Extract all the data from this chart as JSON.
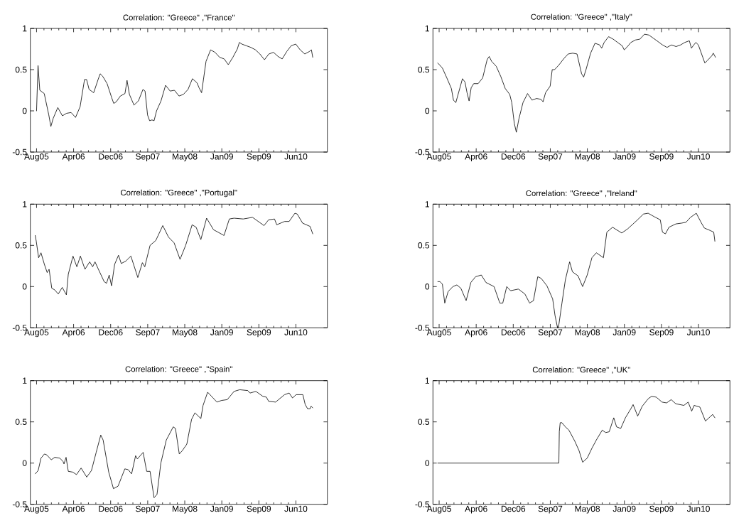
{
  "chart_data": [
    {
      "type": "line",
      "title": "Correlation: \"Greece\" ,\"France\"",
      "color": "#000000",
      "xlim": [
        "2005-06-29",
        "2011-01-01"
      ],
      "ylim": [
        -0.5,
        1
      ],
      "yticks": [
        -0.5,
        0,
        0.5,
        1
      ],
      "xticks": [
        {
          "value": "2005-08-10",
          "label": "Aug05"
        },
        {
          "value": "2006-04-18",
          "label": "Apr06"
        },
        {
          "value": "2006-12-25",
          "label": "Dec06"
        },
        {
          "value": "2007-09-02",
          "label": "Sep07"
        },
        {
          "value": "2008-05-10",
          "label": "May08"
        },
        {
          "value": "2009-01-16",
          "label": "Jan09"
        },
        {
          "value": "2009-09-24",
          "label": "Sep09"
        },
        {
          "value": "2010-06-02",
          "label": "Jun10"
        }
      ],
      "x": [
        "2005-08-10",
        "2005-08-20",
        "2005-09",
        "2005-10",
        "2005-11",
        "2005-11-15",
        "2005-12",
        "2006-01",
        "2006-02",
        "2006-03",
        "2006-04",
        "2006-05",
        "2006-06",
        "2006-07",
        "2006-07-15",
        "2006-08",
        "2006-09",
        "2006-10",
        "2006-10-15",
        "2006-11",
        "2006-12",
        "2007-01",
        "2007-01-15",
        "2007-02",
        "2007-03",
        "2007-04",
        "2007-04-15",
        "2007-05",
        "2007-06",
        "2007-07",
        "2007-08",
        "2007-08-15",
        "2007-09",
        "2007-09-15",
        "2007-10",
        "2007-10-15",
        "2007-11",
        "2007-12",
        "2008-01",
        "2008-02",
        "2008-03",
        "2008-04",
        "2008-05",
        "2008-06",
        "2008-07",
        "2008-08",
        "2008-08-15",
        "2008-09",
        "2008-10",
        "2008-11",
        "2008-12",
        "2009-01",
        "2009-02",
        "2009-03",
        "2009-04",
        "2009-05",
        "2009-05-15",
        "2009-06",
        "2009-07",
        "2009-08",
        "2009-09",
        "2009-10",
        "2009-11",
        "2009-12",
        "2010-01",
        "2010-02",
        "2010-03",
        "2010-04",
        "2010-05",
        "2010-06",
        "2010-07",
        "2010-08",
        "2010-09",
        "2010-09-15",
        "2010-09-24"
      ],
      "values": [
        0,
        0.55,
        0.25,
        0.21,
        -0.05,
        -0.19,
        -0.09,
        0.04,
        -0.06,
        -0.03,
        -0.02,
        -0.08,
        0.05,
        0.38,
        0.38,
        0.26,
        0.22,
        0.38,
        0.45,
        0.42,
        0.33,
        0.16,
        0.09,
        0.11,
        0.18,
        0.21,
        0.37,
        0.2,
        0.07,
        0.12,
        0.26,
        0.24,
        -0.05,
        -0.12,
        -0.11,
        -0.12,
        0.0,
        0.12,
        0.31,
        0.24,
        0.25,
        0.18,
        0.2,
        0.26,
        0.39,
        0.34,
        0.28,
        0.22,
        0.6,
        0.74,
        0.71,
        0.65,
        0.63,
        0.56,
        0.65,
        0.75,
        0.83,
        0.81,
        0.79,
        0.77,
        0.74,
        0.69,
        0.62,
        0.69,
        0.71,
        0.66,
        0.63,
        0.72,
        0.79,
        0.81,
        0.74,
        0.69,
        0.72,
        0.74,
        0.65
      ]
    },
    {
      "type": "line",
      "title": "Correlation: \"Greece\" ,\"Italy\"",
      "color": "#000000",
      "xlim": [
        "2005-06-29",
        "2011-01-01"
      ],
      "ylim": [
        -0.5,
        1
      ],
      "yticks": [
        -0.5,
        0,
        0.5,
        1
      ],
      "xticks": [
        {
          "value": "2005-08-10",
          "label": "Aug05"
        },
        {
          "value": "2006-04-18",
          "label": "Apr06"
        },
        {
          "value": "2006-12-25",
          "label": "Dec06"
        },
        {
          "value": "2007-09-02",
          "label": "Sep07"
        },
        {
          "value": "2008-05-10",
          "label": "May08"
        },
        {
          "value": "2009-01-16",
          "label": "Jan09"
        },
        {
          "value": "2009-09-24",
          "label": "Sep09"
        },
        {
          "value": "2010-06-02",
          "label": "Jun10"
        }
      ],
      "x": [
        "2005-08",
        "2005-09",
        "2005-10",
        "2005-11",
        "2005-11-15",
        "2005-12",
        "2006-01",
        "2006-01-15",
        "2006-02",
        "2006-02-15",
        "2006-03",
        "2006-03-15",
        "2006-04",
        "2006-05",
        "2006-06",
        "2006-07",
        "2006-07-15",
        "2006-08",
        "2006-09",
        "2006-10",
        "2006-11",
        "2006-12",
        "2006-12-15",
        "2007-01",
        "2007-01-15",
        "2007-02",
        "2007-03",
        "2007-04",
        "2007-05",
        "2007-06",
        "2007-07",
        "2007-07-15",
        "2007-08",
        "2007-09",
        "2007-09-15",
        "2007-10",
        "2007-11",
        "2007-12",
        "2008-01",
        "2008-02",
        "2008-03",
        "2008-04",
        "2008-04-15",
        "2008-05",
        "2008-06",
        "2008-07",
        "2008-08",
        "2008-08-15",
        "2008-09",
        "2008-10",
        "2008-11",
        "2008-12",
        "2009-01",
        "2009-01-15",
        "2009-02",
        "2009-03",
        "2009-04",
        "2009-05",
        "2009-06",
        "2009-07",
        "2009-08",
        "2009-09",
        "2009-10",
        "2009-11",
        "2009-12",
        "2010-01",
        "2010-02",
        "2010-03",
        "2010-04",
        "2010-04-15",
        "2010-05",
        "2010-05-15",
        "2010-06",
        "2010-07",
        "2010-07-15",
        "2010-08",
        "2010-09",
        "2010-09-10",
        "2010-09-25"
      ],
      "values": [
        0.58,
        0.52,
        0.4,
        0.27,
        0.13,
        0.1,
        0.3,
        0.39,
        0.35,
        0.22,
        0.12,
        0.28,
        0.33,
        0.33,
        0.4,
        0.62,
        0.66,
        0.6,
        0.54,
        0.42,
        0.27,
        0.2,
        0.1,
        -0.15,
        -0.26,
        -0.1,
        0.1,
        0.21,
        0.13,
        0.15,
        0.14,
        0.11,
        0.22,
        0.3,
        0.5,
        0.5,
        0.56,
        0.63,
        0.69,
        0.7,
        0.69,
        0.45,
        0.41,
        0.5,
        0.7,
        0.82,
        0.8,
        0.76,
        0.83,
        0.9,
        0.87,
        0.83,
        0.79,
        0.74,
        0.77,
        0.83,
        0.86,
        0.87,
        0.93,
        0.92,
        0.88,
        0.84,
        0.8,
        0.77,
        0.8,
        0.78,
        0.8,
        0.83,
        0.85,
        0.76,
        0.8,
        0.83,
        0.8,
        0.65,
        0.58,
        0.61,
        0.67,
        0.7,
        0.65
      ]
    },
    {
      "type": "line",
      "title": "Correlation: \"Greece\" ,\"Portugal\"",
      "color": "#000000",
      "xlim": [
        "2005-06-29",
        "2011-01-01"
      ],
      "ylim": [
        -0.5,
        1
      ],
      "yticks": [
        -0.5,
        0,
        0.5,
        1
      ],
      "xticks": [
        {
          "value": "2005-08-10",
          "label": "Aug05"
        },
        {
          "value": "2006-04-18",
          "label": "Apr06"
        },
        {
          "value": "2006-12-25",
          "label": "Dec06"
        },
        {
          "value": "2007-09-02",
          "label": "Sep07"
        },
        {
          "value": "2008-05-10",
          "label": "May08"
        },
        {
          "value": "2009-01-16",
          "label": "Jan09"
        },
        {
          "value": "2009-09-24",
          "label": "Sep09"
        },
        {
          "value": "2010-06-02",
          "label": "Jun10"
        }
      ],
      "x": [
        "2005-08-01",
        "2005-08-08",
        "2005-08-24",
        "2005-09-09",
        "2005-10-02",
        "2005-10-21",
        "2005-11-03",
        "2005-11-21",
        "2005-12-11",
        "2006-01-04",
        "2006-01-31",
        "2006-02-28",
        "2006-03-13",
        "2006-04-14",
        "2006-05-10",
        "2006-06-03",
        "2006-07-04",
        "2006-08-05",
        "2006-08-25",
        "2006-09-10",
        "2006-10-03",
        "2006-11-11",
        "2006-11-27",
        "2006-12-15",
        "2006-12-31",
        "2007-01-21",
        "2007-02-16",
        "2007-03-07",
        "2007-04-07",
        "2007-05-11",
        "2007-06-27",
        "2007-07-28",
        "2007-08-13",
        "2007-09-18",
        "2007-10-27",
        "2007-12-13",
        "2008-01-21",
        "2008-02-28",
        "2008-04-08",
        "2008-05-16",
        "2008-06-29",
        "2008-07-26",
        "2008-08-27",
        "2008-10-05",
        "2008-11-21",
        "2009-01-31",
        "2009-03-08",
        "2009-04-09",
        "2009-06-10",
        "2009-08-12",
        "2009-10-29",
        "2009-11-29",
        "2010-01-08",
        "2010-01-23",
        "2010-03-17",
        "2010-04-17",
        "2010-05-26",
        "2010-06-11",
        "2010-07-17",
        "2010-09-06",
        "2010-09-24"
      ],
      "values": [
        0.62,
        0.55,
        0.35,
        0.41,
        0.27,
        0.17,
        0.21,
        -0.02,
        -0.04,
        -0.09,
        -0.01,
        -0.1,
        0.15,
        0.37,
        0.24,
        0.37,
        0.21,
        0.3,
        0.24,
        0.3,
        0.21,
        0.06,
        0.04,
        0.14,
        0.01,
        0.27,
        0.38,
        0.28,
        0.31,
        0.37,
        0.11,
        0.29,
        0.24,
        0.5,
        0.56,
        0.74,
        0.6,
        0.53,
        0.33,
        0.5,
        0.75,
        0.72,
        0.57,
        0.83,
        0.69,
        0.62,
        0.82,
        0.83,
        0.82,
        0.84,
        0.74,
        0.81,
        0.82,
        0.75,
        0.79,
        0.79,
        0.89,
        0.88,
        0.77,
        0.73,
        0.64
      ]
    },
    {
      "type": "line",
      "title": "Correlation: \"Greece\" ,\"Ireland\"",
      "color": "#000000",
      "xlim": [
        "2005-06-29",
        "2011-01-01"
      ],
      "ylim": [
        -0.5,
        1
      ],
      "yticks": [
        -0.5,
        0,
        0.5,
        1
      ],
      "xticks": [
        {
          "value": "2005-08-10",
          "label": "Aug05"
        },
        {
          "value": "2006-04-18",
          "label": "Apr06"
        },
        {
          "value": "2006-12-25",
          "label": "Dec06"
        },
        {
          "value": "2007-09-02",
          "label": "Sep07"
        },
        {
          "value": "2008-05-10",
          "label": "May08"
        },
        {
          "value": "2009-01-16",
          "label": "Jan09"
        },
        {
          "value": "2009-09-24",
          "label": "Sep09"
        },
        {
          "value": "2010-06-02",
          "label": "Jun10"
        }
      ],
      "x": [
        "2005-08-01",
        "2005-08-16",
        "2005-09-01",
        "2005-09-17",
        "2005-10-10",
        "2005-11-11",
        "2005-12-08",
        "2006-01-04",
        "2006-02-09",
        "2006-03-13",
        "2006-04-14",
        "2006-05-23",
        "2006-06-23",
        "2006-08-17",
        "2006-09-25",
        "2006-10-15",
        "2006-11-11",
        "2006-12-07",
        "2007-01-29",
        "2007-03-14",
        "2007-04-15",
        "2007-05-11",
        "2007-06-09",
        "2007-07-02",
        "2007-08-10",
        "2007-09-18",
        "2007-10-04",
        "2007-10-21",
        "2007-10-27",
        "2007-11-20",
        "2007-12-13",
        "2008-01-11",
        "2008-01-30",
        "2008-03-08",
        "2008-04-08",
        "2008-05-09",
        "2008-06-10",
        "2008-07-10",
        "2008-08-27",
        "2008-09-19",
        "2008-10-28",
        "2008-12-29",
        "2009-02-07",
        "2009-04-09",
        "2009-05-25",
        "2009-06-26",
        "2009-08-04",
        "2009-09-16",
        "2009-10-01",
        "2009-10-21",
        "2009-11-14",
        "2009-12-30",
        "2010-02-08",
        "2010-03-09",
        "2010-04-09",
        "2010-05-18",
        "2010-06-19",
        "2010-07-12",
        "2010-08-21",
        "2010-09-13",
        "2010-09-21"
      ],
      "values": [
        0.06,
        0.06,
        0.03,
        -0.2,
        -0.06,
        0.0,
        0.02,
        -0.02,
        -0.17,
        0.05,
        0.12,
        0.14,
        0.05,
        0.0,
        -0.2,
        -0.2,
        0.0,
        -0.05,
        -0.03,
        -0.09,
        -0.2,
        -0.17,
        0.12,
        0.1,
        0.01,
        -0.15,
        -0.35,
        -0.5,
        -0.5,
        -0.2,
        0.08,
        0.3,
        0.18,
        0.13,
        0.0,
        0.14,
        0.35,
        0.41,
        0.35,
        0.66,
        0.72,
        0.65,
        0.7,
        0.8,
        0.88,
        0.89,
        0.85,
        0.81,
        0.66,
        0.64,
        0.72,
        0.76,
        0.77,
        0.78,
        0.84,
        0.89,
        0.78,
        0.71,
        0.68,
        0.66,
        0.55
      ]
    },
    {
      "type": "line",
      "title": "Correlation: \"Greece\" ,\"Spain\"",
      "color": "#000000",
      "xlim": [
        "2005-06-29",
        "2011-01-01"
      ],
      "ylim": [
        -0.5,
        1
      ],
      "yticks": [
        -0.5,
        0,
        0.5,
        1
      ],
      "xticks": [
        {
          "value": "2005-08-10",
          "label": "Aug05"
        },
        {
          "value": "2006-04-18",
          "label": "Apr06"
        },
        {
          "value": "2006-12-25",
          "label": "Dec06"
        },
        {
          "value": "2007-09-02",
          "label": "Sep07"
        },
        {
          "value": "2008-05-10",
          "label": "May08"
        },
        {
          "value": "2009-01-16",
          "label": "Jan09"
        },
        {
          "value": "2009-09-24",
          "label": "Sep09"
        },
        {
          "value": "2010-06-02",
          "label": "Jun10"
        }
      ],
      "x": [
        "2005-08-01",
        "2005-08-21",
        "2005-09-09",
        "2005-10-02",
        "2005-10-18",
        "2005-11-18",
        "2005-12-11",
        "2006-01-15",
        "2006-02-05",
        "2006-02-12",
        "2006-02-26",
        "2006-03-13",
        "2006-04-14",
        "2006-05-07",
        "2006-06-08",
        "2006-07-16",
        "2006-08-17",
        "2006-09-18",
        "2006-10-19",
        "2006-11-04",
        "2006-12-12",
        "2007-01-13",
        "2007-02-13",
        "2007-03-07",
        "2007-03-31",
        "2007-04-23",
        "2007-05-16",
        "2007-06-12",
        "2007-06-24",
        "2007-08-02",
        "2007-08-26",
        "2007-09-18",
        "2007-10-15",
        "2007-11-04",
        "2007-11-30",
        "2008-01-06",
        "2008-02-22",
        "2008-03-08",
        "2008-04-03",
        "2008-04-23",
        "2008-05-24",
        "2008-06-25",
        "2008-07-18",
        "2008-08-27",
        "2008-09-11",
        "2008-10-12",
        "2008-11-13",
        "2008-12-14",
        "2009-01-14",
        "2009-02-22",
        "2009-04-09",
        "2009-05-17",
        "2009-07-11",
        "2009-07-26",
        "2009-09-04",
        "2009-10-21",
        "2009-11-14",
        "2009-11-29",
        "2010-01-15",
        "2010-03-17",
        "2010-04-17",
        "2010-05-10",
        "2010-06-03",
        "2010-07-19",
        "2010-08-04",
        "2010-08-20",
        "2010-09-06",
        "2010-09-13",
        "2010-09-24"
      ],
      "values": [
        -0.13,
        -0.09,
        0.06,
        0.11,
        0.1,
        0.04,
        0.07,
        0.06,
        0.02,
        -0.01,
        0.07,
        -0.1,
        -0.11,
        -0.14,
        -0.06,
        -0.17,
        -0.09,
        0.13,
        0.34,
        0.28,
        -0.11,
        -0.31,
        -0.28,
        -0.18,
        -0.07,
        -0.08,
        -0.13,
        0.09,
        0.05,
        0.13,
        -0.1,
        -0.1,
        -0.42,
        -0.38,
        0.0,
        0.28,
        0.44,
        0.42,
        0.11,
        0.15,
        0.23,
        0.53,
        0.61,
        0.54,
        0.7,
        0.86,
        0.8,
        0.74,
        0.76,
        0.77,
        0.87,
        0.89,
        0.88,
        0.85,
        0.87,
        0.81,
        0.8,
        0.75,
        0.74,
        0.83,
        0.85,
        0.79,
        0.83,
        0.83,
        0.71,
        0.66,
        0.66,
        0.69,
        0.67
      ]
    },
    {
      "type": "line",
      "title": "Correlation: \"Greece\" ,\"UK\"",
      "color": "#000000",
      "xlim": [
        "2005-06-29",
        "2011-01-01"
      ],
      "ylim": [
        -0.5,
        1
      ],
      "yticks": [
        -0.5,
        0,
        0.5,
        1
      ],
      "xticks": [
        {
          "value": "2005-08-10",
          "label": "Aug05"
        },
        {
          "value": "2006-04-18",
          "label": "Apr06"
        },
        {
          "value": "2006-12-25",
          "label": "Dec06"
        },
        {
          "value": "2007-09-02",
          "label": "Sep07"
        },
        {
          "value": "2008-05-10",
          "label": "May08"
        },
        {
          "value": "2009-01-16",
          "label": "Jan09"
        },
        {
          "value": "2009-09-24",
          "label": "Sep09"
        },
        {
          "value": "2010-06-02",
          "label": "Jun10"
        }
      ],
      "x": [
        "2005-08-01",
        "2007-10-30",
        "2007-11-02",
        "2007-11-08",
        "2007-11-20",
        "2007-12-13",
        "2008-01-06",
        "2008-02-14",
        "2008-03-15",
        "2008-04-08",
        "2008-05-09",
        "2008-06-10",
        "2008-07-10",
        "2008-08-19",
        "2008-09-11",
        "2008-10-05",
        "2008-11-05",
        "2008-11-24",
        "2008-12-22",
        "2009-01-23",
        "2009-03-01",
        "2009-03-16",
        "2009-04-16",
        "2009-05-17",
        "2009-06-26",
        "2009-07-19",
        "2009-08-20",
        "2009-09-28",
        "2009-10-29",
        "2009-11-29",
        "2009-12-30",
        "2010-02-23",
        "2010-03-24",
        "2010-04-17",
        "2010-05-03",
        "2010-06-11",
        "2010-07-19",
        "2010-09-06",
        "2010-09-21"
      ],
      "values": [
        0,
        0,
        0.38,
        0.49,
        0.49,
        0.44,
        0.4,
        0.27,
        0.15,
        0.01,
        0.06,
        0.18,
        0.28,
        0.4,
        0.37,
        0.38,
        0.55,
        0.44,
        0.42,
        0.55,
        0.66,
        0.71,
        0.57,
        0.69,
        0.78,
        0.81,
        0.8,
        0.74,
        0.73,
        0.77,
        0.72,
        0.7,
        0.74,
        0.63,
        0.7,
        0.68,
        0.51,
        0.59,
        0.55
      ]
    }
  ]
}
